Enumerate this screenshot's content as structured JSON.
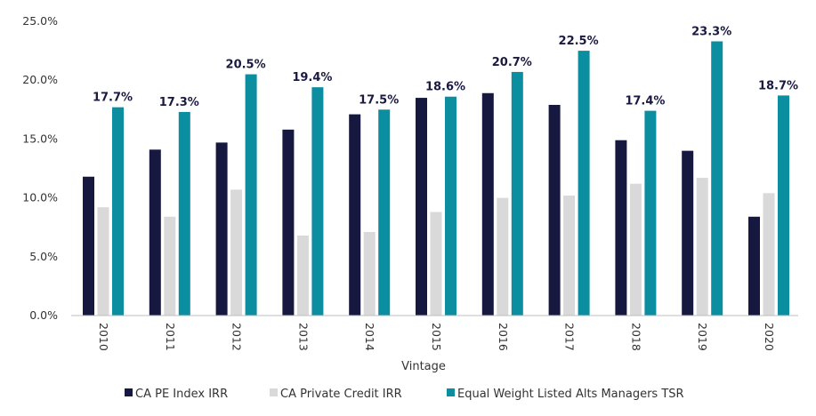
{
  "chart_data": {
    "type": "bar",
    "title": "",
    "xlabel": "Vintage",
    "ylabel": "",
    "ylim": [
      0,
      25
    ],
    "yticks": [
      "0.0%",
      "5.0%",
      "10.0%",
      "15.0%",
      "20.0%",
      "25.0%"
    ],
    "grid": false,
    "legend_position": "bottom",
    "categories": [
      "2010",
      "2011",
      "2012",
      "2013",
      "2014",
      "2015",
      "2016",
      "2017",
      "2018",
      "2019",
      "2020"
    ],
    "series": [
      {
        "name": "CA PE Index IRR",
        "color": "#161840",
        "values": [
          11.8,
          14.1,
          14.7,
          15.8,
          17.1,
          18.5,
          18.9,
          17.9,
          14.9,
          14.0,
          8.4
        ]
      },
      {
        "name": "CA Private Credit IRR",
        "color": "#d9d9d9",
        "values": [
          9.2,
          8.4,
          10.7,
          6.8,
          7.1,
          8.8,
          10.0,
          10.2,
          11.2,
          11.7,
          10.4
        ]
      },
      {
        "name": "Equal Weight Listed Alts Managers TSR",
        "color": "#0a8ea0",
        "values": [
          17.7,
          17.3,
          20.5,
          19.4,
          17.5,
          18.6,
          20.7,
          22.5,
          17.4,
          23.3,
          18.7
        ],
        "data_labels": [
          "17.7%",
          "17.3%",
          "20.5%",
          "19.4%",
          "17.5%",
          "18.6%",
          "20.7%",
          "22.5%",
          "17.4%",
          "23.3%",
          "18.7%"
        ]
      }
    ]
  }
}
